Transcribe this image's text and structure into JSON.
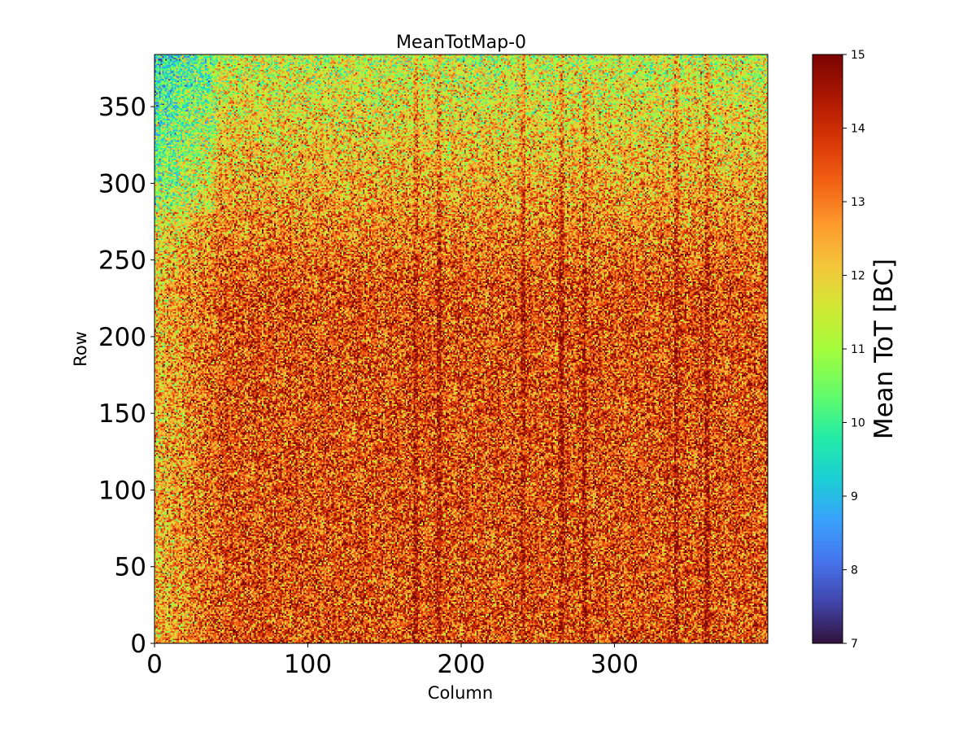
{
  "chart_data": {
    "type": "heatmap",
    "title": "MeanTotMap-0",
    "xlabel": "Column",
    "ylabel": "Row",
    "colorbar_label": "Mean ToT [BC]",
    "xlim": [
      0,
      400
    ],
    "ylim": [
      0,
      384
    ],
    "x_ticks": [
      0,
      100,
      200,
      300
    ],
    "y_ticks": [
      0,
      50,
      100,
      150,
      200,
      250,
      300,
      350
    ],
    "colorbar_range": [
      7,
      15
    ],
    "colorbar_ticks": [
      7,
      8,
      9,
      10,
      11,
      12,
      13,
      14,
      15
    ],
    "colormap": "turbo",
    "grid": false,
    "value_description": "Pixel-level mean ToT per column/row; noisy field mostly 12-15 BC, lower (~10-11 BC, green/cyan) toward top rows (~270-384) and low columns (~0-40); darker red vertical streaks near columns ~170, 185, 240, 265, 280, 340, 360",
    "typical_values": {
      "bottom_region_mean": 13.6,
      "top_region_mean": 11.3,
      "top_left_corner_mean": 10.6,
      "left_edge_mean": 12.3
    },
    "streak_columns": [
      170,
      185,
      240,
      265,
      280,
      340,
      360
    ]
  }
}
